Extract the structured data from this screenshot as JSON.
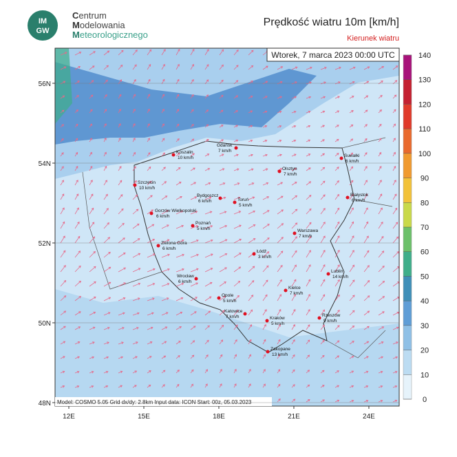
{
  "header": {
    "logo": [
      "IM",
      "GW"
    ],
    "org": [
      "Centrum",
      "Modelowania",
      "Meteorologicznego"
    ],
    "title": "Prędkość wiatru 10m [km/h]",
    "subtitle": "Kierunek wiatru"
  },
  "map": {
    "date": "Wtorek, 7 marca 2023 00:00 UTC",
    "footer": "Model: COSMO 5.05  Grid dx/dy: 2.8km  Input data: ICON  Start: 00z, 05.03.2023",
    "lat_ticks": [
      {
        "value": 56,
        "label": "56N"
      },
      {
        "value": 54,
        "label": "54N"
      },
      {
        "value": 52,
        "label": "52N"
      },
      {
        "value": 50,
        "label": "50N"
      },
      {
        "value": 48,
        "label": "48N"
      }
    ],
    "lon_ticks": [
      {
        "value": 12,
        "label": "12E"
      },
      {
        "value": 15,
        "label": "15E"
      },
      {
        "value": 18,
        "label": "18E"
      },
      {
        "value": 21,
        "label": "21E"
      },
      {
        "value": 24,
        "label": "24E"
      }
    ],
    "cities": [
      {
        "name": "Koszalin",
        "wind": "10 km/h"
      },
      {
        "name": "Gdańsk",
        "wind": "7 km/h"
      },
      {
        "name": "Suwałki",
        "wind": "6 km/h"
      },
      {
        "name": "Olsztyn",
        "wind": "7 km/h"
      },
      {
        "name": "Szczecin",
        "wind": "10 km/h"
      },
      {
        "name": "Białystok",
        "wind": "6 km/h"
      },
      {
        "name": "Bydgoszcz",
        "wind": "6 km/h"
      },
      {
        "name": "Toruń",
        "wind": "5 km/h"
      },
      {
        "name": "Gorzów Wielkopolski",
        "wind": "6 km/h"
      },
      {
        "name": "Poznań",
        "wind": "5 km/h"
      },
      {
        "name": "Warszawa",
        "wind": "7 km/h"
      },
      {
        "name": "Zielona Góra",
        "wind": "6 km/h"
      },
      {
        "name": "Łódź",
        "wind": "3 km/h"
      },
      {
        "name": "Lublin",
        "wind": "14 km/h"
      },
      {
        "name": "Wrocław",
        "wind": "6 km/h"
      },
      {
        "name": "Kielce",
        "wind": "7 km/h"
      },
      {
        "name": "Opole",
        "wind": "5 km/h"
      },
      {
        "name": "Katowice",
        "wind": "7 km/h"
      },
      {
        "name": "Kraków",
        "wind": "5 km/h"
      },
      {
        "name": "Rzeszów",
        "wind": "9 km/h"
      },
      {
        "name": "Zakopane",
        "wind": "13 km/h"
      }
    ]
  },
  "colorbar": {
    "ticks": [
      0,
      10,
      20,
      30,
      40,
      50,
      60,
      70,
      80,
      90,
      100,
      110,
      120,
      130,
      140
    ],
    "colors": [
      "#e6f3fb",
      "#bcdcf2",
      "#8fc0e6",
      "#5f9dd6",
      "#3f8fb8",
      "#3fae8a",
      "#6cc06a",
      "#c9d94a",
      "#f2c23a",
      "#f09a30",
      "#e96a2e",
      "#e03a2a",
      "#c42030",
      "#a8127a"
    ]
  }
}
